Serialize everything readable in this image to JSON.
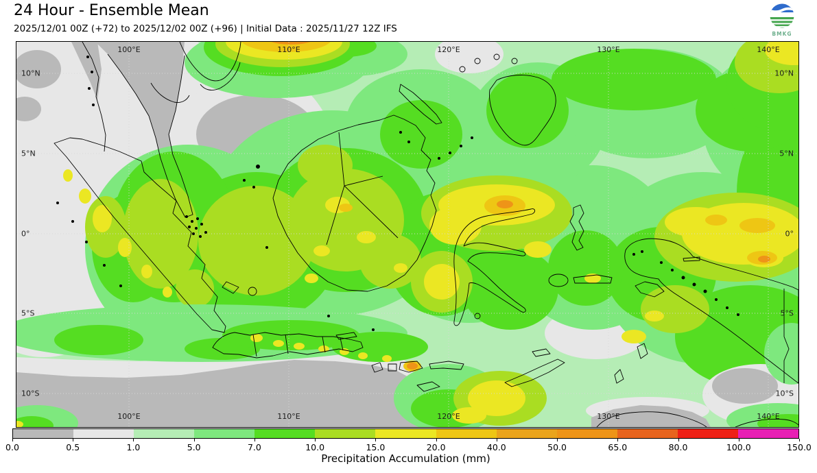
{
  "header": {
    "title": "24 Hour - Ensemble Mean",
    "subtitle": "2025/12/01 00Z (+72) to 2025/12/02 00Z (+96) | Initial Data : 2025/11/27 12Z IFS"
  },
  "logo": {
    "text": "BMKG"
  },
  "map": {
    "lon_labels": [
      "100°E",
      "110°E",
      "120°E",
      "130°E",
      "140°E"
    ],
    "lat_labels": [
      "10°N",
      "5°N",
      "0°",
      "5°S",
      "10°S"
    ]
  },
  "colorbar": {
    "label": "Precipitation Accumulation (mm)",
    "ticks": [
      "0.0",
      "0.5",
      "1.0",
      "5.0",
      "7.0",
      "10.0",
      "15.0",
      "20.0",
      "40.0",
      "50.0",
      "65.0",
      "80.0",
      "100.0",
      "150.0"
    ],
    "colors": [
      "#b9b9b9",
      "#e7e7e7",
      "#b5edb5",
      "#7ee87e",
      "#55dd22",
      "#aadd22",
      "#ebe723",
      "#eec614",
      "#eaa41c",
      "#ee9418",
      "#e8641e",
      "#ee2016",
      "#e820b4"
    ]
  }
}
